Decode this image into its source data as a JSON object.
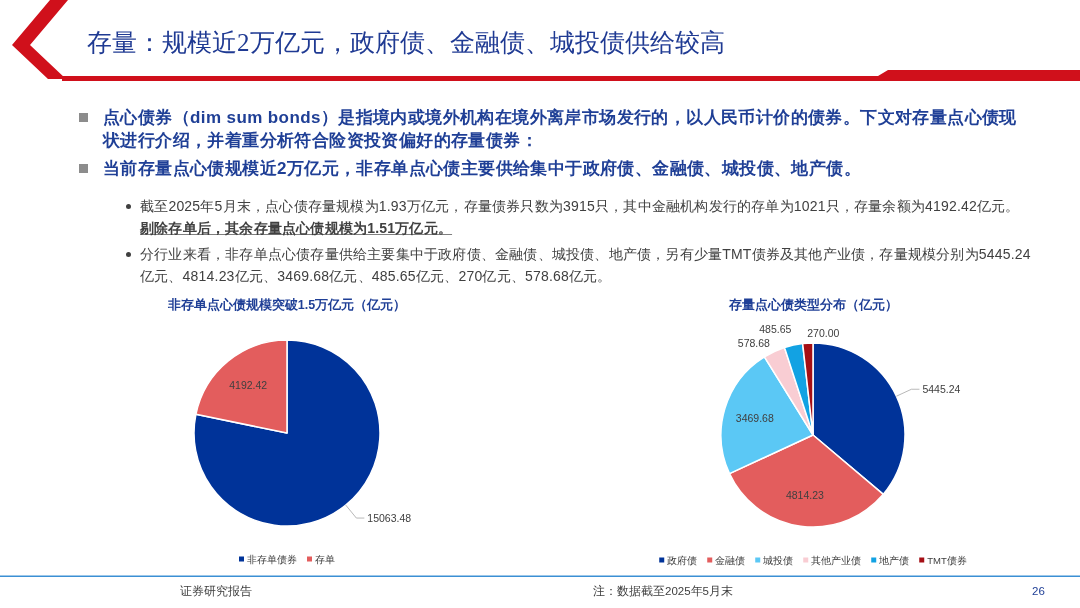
{
  "chart_data": [
    {
      "type": "other",
      "title": "存量：规模近2万亿元，政府债、金融债、城投债供给较高",
      "annotations": [
        "点心债券（dim sum bonds）是指境内或境外机构在境外离岸市场发行的，以人民币计价的债券。下文对存量点心债现状进行介绍，并着重分析符合险资投资偏好的存量债券：",
        "当前存量点心债规模近2万亿元，非存单点心债主要供给集中于政府债、金融债、城投债、地产债。",
        "截至2025年5月末，点心债存量规模为1.93万亿元，存量债券只数为3915只，其中金融机构发行的存单为1021只，存量余额为4192.42亿元。",
        "剔除存单后，其余存量点心债规模为1.51万亿元。",
        "分行业来看，非存单点心债存量供给主要集中于政府债、金融债、城投债、地产债，另有少量TMT债券及其他产业债，存量规模分别为5445.24亿元、4814.23亿元、3469.68亿元、485.65亿元、270亿元、578.68亿元。",
        "证券研究报告",
        "注：数据截至2025年5月末",
        "26"
      ]
    },
    {
      "type": "pie",
      "title": "非存单点心债规模突破1.5万亿元（亿元）",
      "categories": [
        "非存单债券",
        "存单"
      ],
      "values": [
        15063.48,
        4192.42
      ],
      "colors": [
        "#003399",
        "#e35d5d"
      ],
      "value_labels": [
        "15063.48",
        "4192.42"
      ],
      "legend": "bottom"
    },
    {
      "type": "pie",
      "title": "存量点心债类型分布（亿元）",
      "categories": [
        "政府债",
        "金融债",
        "城投债",
        "其他产业债",
        "地产债",
        "TMT债券"
      ],
      "values": [
        5445.24,
        4814.23,
        3469.68,
        578.68,
        485.65,
        270.0
      ],
      "colors": [
        "#003399",
        "#e35d5d",
        "#5bc8f5",
        "#f9cdd3",
        "#12a2e3",
        "#a50f15"
      ],
      "value_labels": [
        "5445.24",
        "4814.23",
        "3469.68",
        "578.68",
        "485.65",
        "270.00"
      ],
      "legend": "bottom"
    }
  ]
}
